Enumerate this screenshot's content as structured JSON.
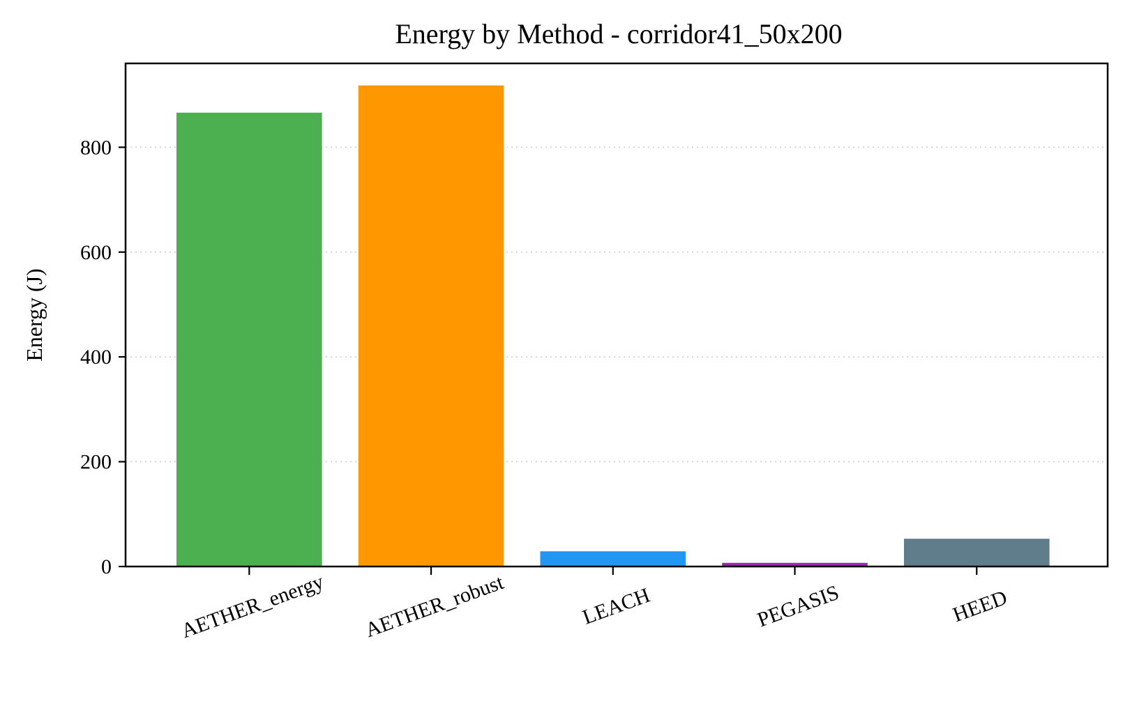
{
  "chart_data": {
    "type": "bar",
    "title": "Energy by Method - corridor41_50x200",
    "ylabel": "Energy (J)",
    "xlabel": "",
    "categories": [
      "AETHER_energy",
      "AETHER_robust",
      "LEACH",
      "PEGASIS",
      "HEED"
    ],
    "values": [
      866,
      918,
      29,
      7,
      53
    ],
    "colors": [
      "#4caf50",
      "#ff9800",
      "#2196f3",
      "#9c27b0",
      "#607d8b"
    ],
    "ylim": [
      0,
      960
    ],
    "yticks": [
      0,
      200,
      400,
      600,
      800
    ],
    "ytick_labels": [
      "0",
      "200",
      "400",
      "600",
      "800"
    ],
    "grid": "y-dotted",
    "legend": "none"
  }
}
